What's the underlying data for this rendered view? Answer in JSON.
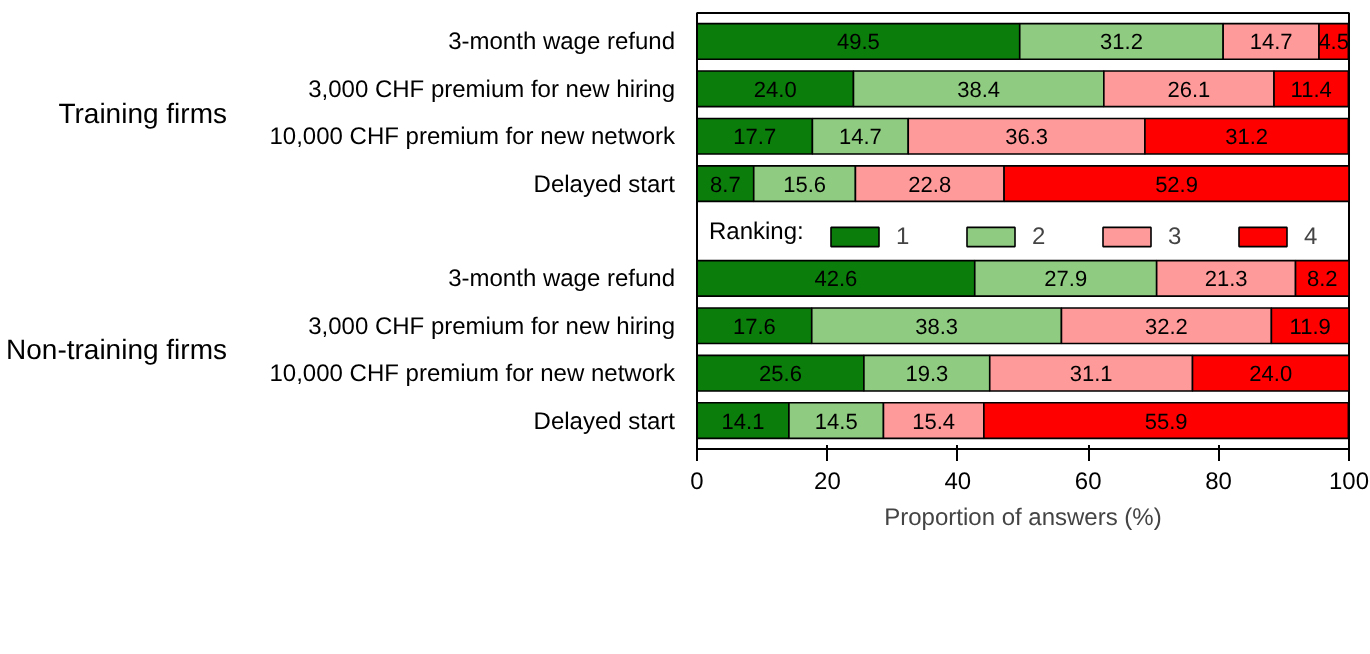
{
  "chart_data": {
    "type": "bar",
    "orientation": "horizontal",
    "stacked": true,
    "categories": [
      "3-month wage refund",
      "3,000 CHF premium for new hiring",
      "10,000 CHF premium for new network",
      "Delayed start",
      null,
      "3-month wage refund",
      "3,000 CHF premium for new hiring",
      "10,000 CHF premium for new network",
      "Delayed start"
    ],
    "series": [
      {
        "name": "1",
        "color": "#0a7d0a",
        "values": [
          49.5,
          24.0,
          17.7,
          8.7,
          null,
          42.6,
          17.6,
          25.6,
          14.1
        ],
        "value_labels": [
          "49.5",
          "24.0",
          "17.7",
          "8.7",
          null,
          "42.6",
          "17.6",
          "25.6",
          "14.1"
        ]
      },
      {
        "name": "2",
        "color": "#8fcb80",
        "values": [
          31.2,
          38.4,
          14.7,
          15.6,
          null,
          27.9,
          38.3,
          19.3,
          14.5
        ],
        "value_labels": [
          "31.2",
          "38.4",
          "14.7",
          "15.6",
          null,
          "27.9",
          "38.3",
          "19.3",
          "14.5"
        ]
      },
      {
        "name": "3",
        "color": "#ff9a9a",
        "values": [
          14.7,
          26.1,
          36.3,
          22.8,
          null,
          21.3,
          32.2,
          31.1,
          15.4
        ],
        "value_labels": [
          "14.7",
          "26.1",
          "36.3",
          "22.8",
          null,
          "21.3",
          "32.2",
          "31.1",
          "15.4"
        ]
      },
      {
        "name": "4",
        "color": "#ff0000",
        "values": [
          4.5,
          11.4,
          31.2,
          52.9,
          null,
          8.2,
          11.9,
          24.0,
          55.9
        ],
        "value_labels": [
          "4.5",
          "11.4",
          "31.2",
          "52.9",
          null,
          "8.2",
          "11.9",
          "24.0",
          "55.9"
        ]
      }
    ],
    "xlim": [
      0,
      100
    ],
    "xticks": [
      0,
      20,
      40,
      60,
      80,
      100
    ],
    "xlabel": "Proportion of answers (%)",
    "legend_title": "Ranking:",
    "legend": "center",
    "grid": false,
    "annotations": [
      "Training firms",
      "Non-training firms"
    ]
  }
}
